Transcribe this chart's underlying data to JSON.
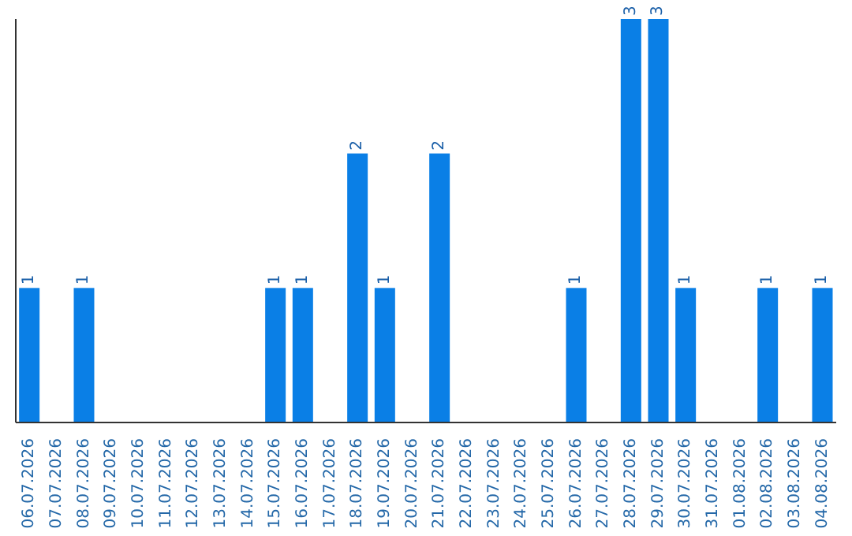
{
  "chart_data": {
    "type": "bar",
    "categories": [
      "06.07.2026",
      "07.07.2026",
      "08.07.2026",
      "09.07.2026",
      "10.07.2026",
      "11.07.2026",
      "12.07.2026",
      "13.07.2026",
      "14.07.2026",
      "15.07.2026",
      "16.07.2026",
      "17.07.2026",
      "18.07.2026",
      "19.07.2026",
      "20.07.2026",
      "21.07.2026",
      "22.07.2026",
      "23.07.2026",
      "24.07.2026",
      "25.07.2026",
      "26.07.2026",
      "27.07.2026",
      "28.07.2026",
      "29.07.2026",
      "30.07.2026",
      "31.07.2026",
      "01.08.2026",
      "02.08.2026",
      "03.08.2026",
      "04.08.2026"
    ],
    "values": [
      1,
      0,
      1,
      0,
      0,
      0,
      0,
      0,
      0,
      1,
      1,
      0,
      2,
      1,
      0,
      2,
      0,
      0,
      0,
      0,
      1,
      0,
      3,
      3,
      1,
      0,
      0,
      1,
      0,
      1
    ],
    "value_labels": [
      "1",
      null,
      "1",
      null,
      null,
      null,
      null,
      null,
      null,
      "1",
      "1",
      null,
      "2",
      "1",
      null,
      "2",
      null,
      null,
      null,
      null,
      "1",
      null,
      "3",
      "3",
      "1",
      null,
      null,
      "1",
      null,
      "1"
    ],
    "color": "#0a7fe6",
    "tick_labels": "x"
  }
}
